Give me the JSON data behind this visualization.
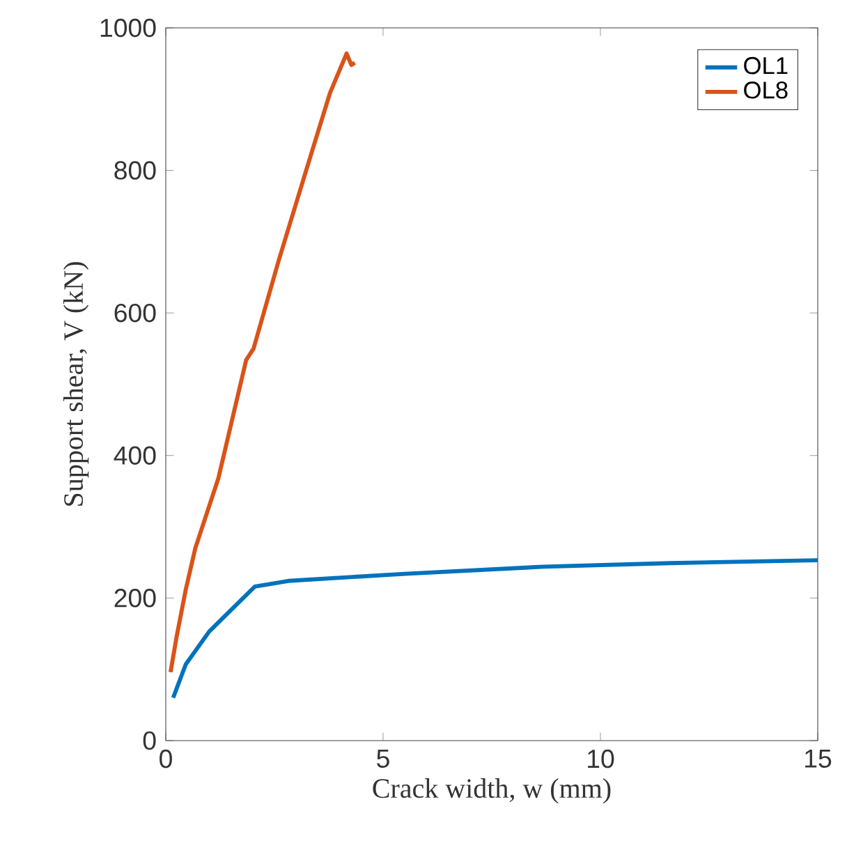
{
  "chart_data": {
    "type": "line",
    "xlabel": "Crack width, w (mm)",
    "ylabel": "Support shear, V (kN)",
    "xlim": [
      0,
      15
    ],
    "ylim": [
      0,
      1000
    ],
    "xticks": [
      0,
      5,
      10,
      15
    ],
    "yticks": [
      0,
      200,
      400,
      600,
      800,
      1000
    ],
    "grid": false,
    "legend": "top right",
    "line_style": "solid",
    "marker": "none",
    "series": [
      {
        "name": "OL1",
        "color": "#0072bd",
        "x": [
          0.17,
          0.46,
          1.0,
          1.43,
          2.05,
          2.82,
          5.5,
          8.7,
          11.6,
          15.0
        ],
        "values": [
          60,
          107,
          153,
          179,
          216,
          224,
          234,
          244,
          249,
          253
        ]
      },
      {
        "name": "OL8",
        "color": "#d95319",
        "x": [
          0.11,
          0.25,
          0.46,
          0.68,
          1.21,
          1.85,
          2.02,
          2.6,
          3.35,
          3.78,
          4.16,
          4.27,
          4.35
        ],
        "values": [
          96,
          146,
          212,
          270,
          368,
          534,
          550,
          674,
          824,
          909,
          964,
          948,
          951
        ]
      }
    ]
  }
}
